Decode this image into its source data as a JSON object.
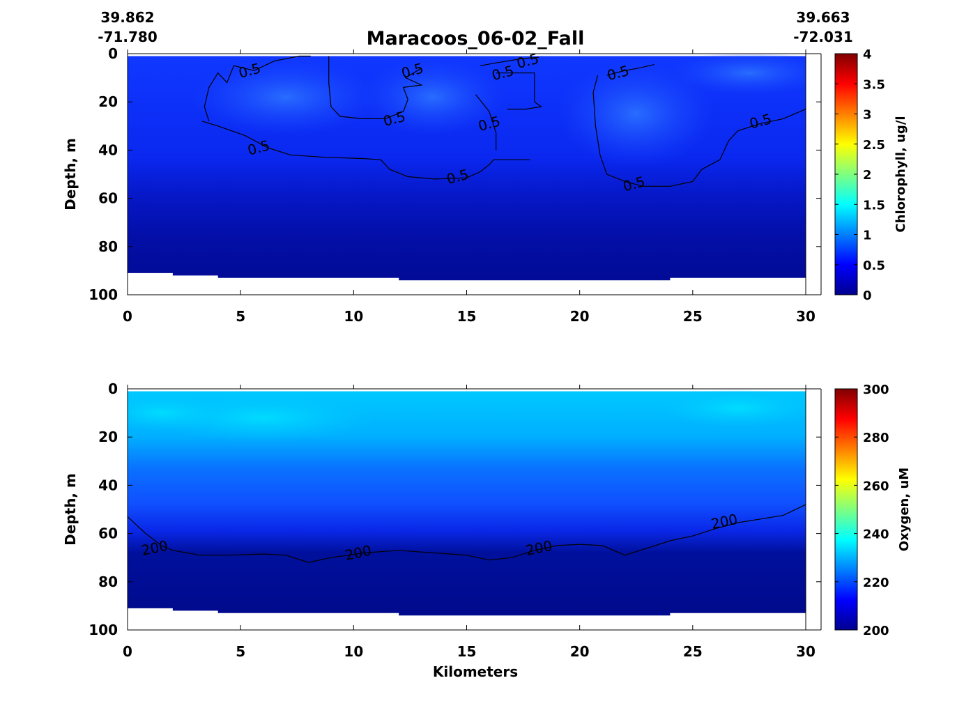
{
  "title": "Maracoos_06-02_Fall",
  "start_position": {
    "lat": "39.862",
    "lon": "-71.780"
  },
  "end_position": {
    "lat": "39.663",
    "lon": "-72.031"
  },
  "chart_data": [
    {
      "type": "heatmap",
      "name": "chlorophyll-section",
      "xlabel": "",
      "ylabel": "Depth, m",
      "xlim": [
        0,
        30
      ],
      "ylim": [
        100,
        0
      ],
      "xticks": [
        "0",
        "5",
        "10",
        "15",
        "20",
        "25",
        "30"
      ],
      "yticks": [
        "0",
        "20",
        "40",
        "60",
        "80",
        "100"
      ],
      "colorbar": {
        "label": "Chlorophyll, ug/l",
        "range": [
          0,
          4
        ],
        "ticks": [
          "0",
          "0.5",
          "1",
          "1.5",
          "2",
          "2.5",
          "3",
          "3.5",
          "4"
        ],
        "colormap": "jet"
      },
      "contour": {
        "level_label": "0.5",
        "label_positions_km_depth": [
          [
            5.4,
            7
          ],
          [
            12.6,
            7
          ],
          [
            16.6,
            8
          ],
          [
            17.7,
            3
          ],
          [
            21.7,
            8
          ],
          [
            11.8,
            27
          ],
          [
            16.0,
            29
          ],
          [
            28.0,
            28
          ],
          [
            5.8,
            39
          ],
          [
            14.6,
            51
          ],
          [
            22.4,
            54
          ]
        ]
      },
      "bottom_depth_m": [
        [
          0,
          91
        ],
        [
          2,
          92
        ],
        [
          4,
          93
        ],
        [
          12,
          94
        ],
        [
          24,
          93
        ],
        [
          30,
          93
        ]
      ],
      "value_regions": [
        {
          "km": [
            0,
            30
          ],
          "depth_m": [
            0,
            30
          ],
          "value": 0.35
        },
        {
          "km": [
            3,
            19
          ],
          "depth_m": [
            5,
            52
          ],
          "value": 0.55
        },
        {
          "km": [
            21,
            30
          ],
          "depth_m": [
            0,
            50
          ],
          "value": 0.6
        },
        {
          "km": [
            0,
            30
          ],
          "depth_m": [
            60,
            95
          ],
          "value": 0.15
        }
      ]
    },
    {
      "type": "heatmap",
      "name": "oxygen-section",
      "xlabel": "Kilometers",
      "ylabel": "Depth, m",
      "xlim": [
        0,
        30
      ],
      "ylim": [
        100,
        0
      ],
      "xticks": [
        "0",
        "5",
        "10",
        "15",
        "20",
        "25",
        "30"
      ],
      "yticks": [
        "0",
        "20",
        "40",
        "60",
        "80",
        "100"
      ],
      "colorbar": {
        "label": "Oxygen, uM",
        "range": [
          200,
          300
        ],
        "ticks": [
          "200",
          "220",
          "240",
          "260",
          "280",
          "300"
        ],
        "colormap": "jet"
      },
      "contour": {
        "level_label": "200",
        "label_positions_km_depth": [
          [
            1.2,
            66
          ],
          [
            10.2,
            68
          ],
          [
            18.2,
            66
          ],
          [
            26.4,
            55
          ]
        ]
      },
      "bottom_depth_m": [
        [
          0,
          91
        ],
        [
          2,
          92
        ],
        [
          4,
          93
        ],
        [
          12,
          94
        ],
        [
          24,
          93
        ],
        [
          30,
          93
        ]
      ],
      "value_regions": [
        {
          "km": [
            0,
            30
          ],
          "depth_m": [
            0,
            20
          ],
          "value": 233
        },
        {
          "km": [
            0,
            30
          ],
          "depth_m": [
            20,
            50
          ],
          "value": 225
        },
        {
          "km": [
            0,
            30
          ],
          "depth_m": [
            55,
            95
          ],
          "value": 203
        }
      ]
    }
  ]
}
